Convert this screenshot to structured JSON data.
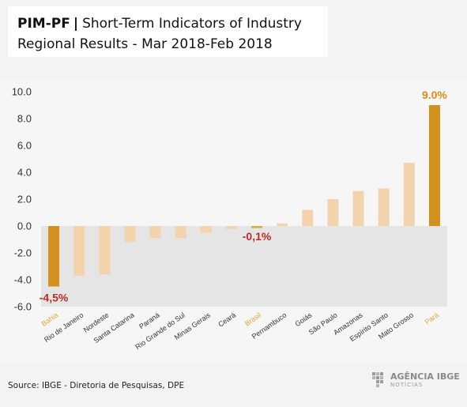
{
  "header": {
    "tag": "PIM-PF",
    "title_line1": "Short-Term Indicators of Industry",
    "title_line2": "Regional Results - Mar 2018-Feb 2018"
  },
  "footer": {
    "source": "Source: IBGE - Diretoria de Pesquisas, DPE",
    "logo_text": "AGÊNCIA IBGE",
    "logo_sub": "NOTÍCIAS"
  },
  "colors": {
    "highlight": "#d4901d",
    "regular": "#f2d3ac",
    "national": "#e0a83a",
    "negative_band": "#e5e5e5",
    "label_negative": "#c0292b",
    "label_positive": "#e08a12",
    "highlight_tick": "#e0a83a"
  },
  "chart_data": {
    "type": "bar",
    "title": "",
    "xlabel": "",
    "ylabel": "",
    "ylim": [
      -6.0,
      10.0
    ],
    "yticks": [
      "10.0",
      "8.0",
      "6.0",
      "4.0",
      "2.0",
      "0.0",
      "-2.0",
      "-4.0",
      "-6.0"
    ],
    "categories": [
      "Bahia",
      "Rio de Janeiro",
      "Nordeste",
      "Santa Catarina",
      "Paraná",
      "Rio Grande do Sul",
      "Minas Gerais",
      "Ceará",
      "Brasil",
      "Pernambuco",
      "Goiás",
      "São Paulo",
      "Amazonas",
      "Espírito Santo",
      "Mato Grosso",
      "Pará"
    ],
    "values": [
      -4.5,
      -3.7,
      -3.6,
      -1.2,
      -0.9,
      -0.9,
      -0.5,
      -0.2,
      -0.1,
      0.2,
      1.2,
      2.0,
      2.6,
      2.8,
      4.7,
      9.0
    ],
    "highlight": [
      "Bahia",
      "Pará"
    ],
    "national": "Brasil",
    "data_labels": [
      {
        "category": "Bahia",
        "text": "-4,5%"
      },
      {
        "category": "Brasil",
        "text": "-0,1%"
      },
      {
        "category": "Pará",
        "text": "9.0%"
      }
    ]
  }
}
